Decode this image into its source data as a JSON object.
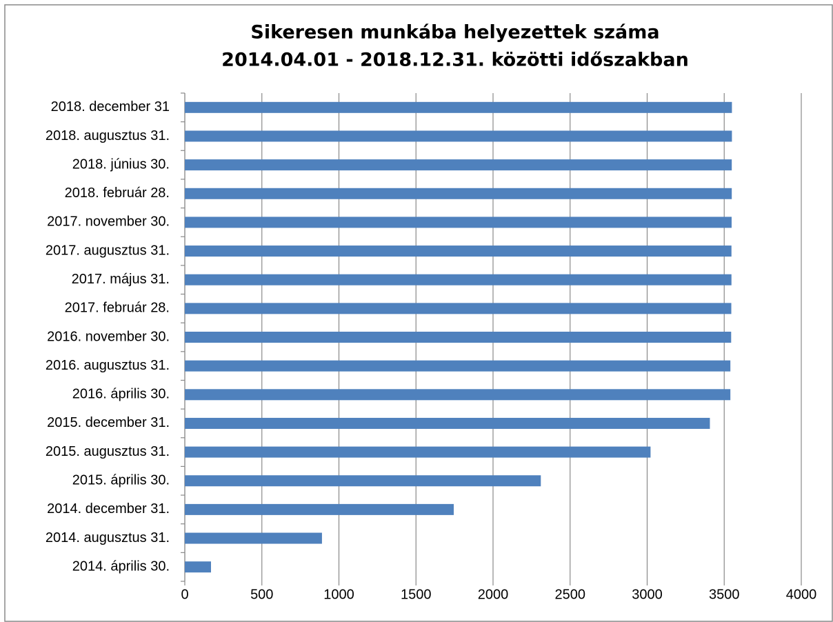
{
  "chart_data": {
    "type": "barh",
    "title": [
      "Sikeresen munkába helyezettek száma",
      "2014.04.01 - 2018.12.31. közötti időszakban"
    ],
    "categories": [
      "2014. április 30.",
      "2014. augusztus 31.",
      "2014. december 31.",
      "2015. április 30.",
      "2015. augusztus 31.",
      "2015. december 31.",
      "2016. április 30.",
      "2016. augusztus 31.",
      "2016. november 30.",
      "2017. február 28.",
      "2017. május 31.",
      "2017. augusztus 31.",
      "2017. november 30.",
      "2018. február 28.",
      "2018. június 30.",
      "2018. augusztus 31.",
      "2018. december 31"
    ],
    "values": [
      170,
      890,
      1745,
      2310,
      3022,
      3407,
      3540,
      3540,
      3545,
      3546,
      3547,
      3547,
      3548,
      3549,
      3549,
      3550,
      3550
    ],
    "color": "#4f81bd",
    "xlim": [
      0,
      4000
    ],
    "xticks": [
      0,
      500,
      1000,
      1500,
      2000,
      2500,
      3000,
      3500,
      4000
    ],
    "grid": true
  }
}
